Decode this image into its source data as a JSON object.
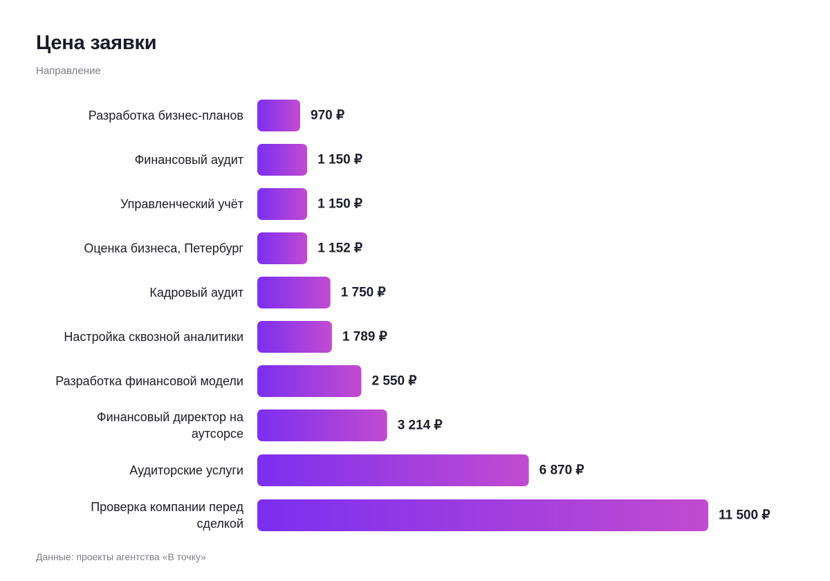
{
  "header": {
    "title": "Цена заявки",
    "subtitle": "Направление"
  },
  "footer": {
    "source": "Данные: проекты агентства «В точку»"
  },
  "colors": {
    "bar_start": "#7b2ff0",
    "bar_end": "#c24bd0",
    "text": "#1c1c2a",
    "muted": "#7c7c88"
  },
  "chart_data": {
    "type": "bar",
    "orientation": "horizontal",
    "title": "Цена заявки",
    "subtitle": "Направление",
    "currency": "₽",
    "categories": [
      "Разработка бизнес-планов",
      "Финансовый аудит",
      "Управленческий учёт",
      "Оценка бизнеса, Петербург",
      "Кадровый аудит",
      "Настройка сквозной аналитики",
      "Разработка финансовой модели",
      "Финансовый директор на аутсорсе",
      "Аудиторские услуги",
      "Проверка компании перед сделкой"
    ],
    "values": [
      970,
      1150,
      1150,
      1152,
      1750,
      1789,
      2550,
      3214,
      6870,
      11500
    ],
    "value_labels": [
      "970",
      "1 150",
      "1 150",
      "1 152",
      "1 750",
      "1 789",
      "2 550",
      "3 214",
      "6 870",
      "11 500"
    ],
    "grid": false,
    "legend": "none"
  }
}
